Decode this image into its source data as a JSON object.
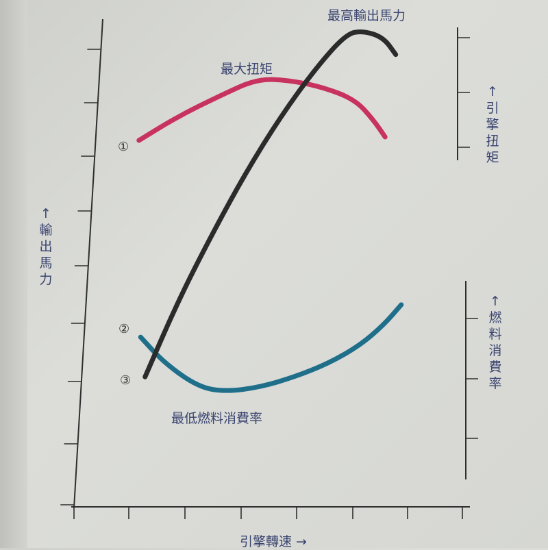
{
  "chart_data": {
    "type": "line",
    "title": "",
    "xlabel": "引擎轉速 →",
    "ylabel_left": "↑ 輸出馬力",
    "ylabel_right_top": "↑ 引擎扭矩",
    "ylabel_right_bottom": "↑ 燃料消費率",
    "grid": false,
    "xlim": [
      0,
      7
    ],
    "ylim": [
      0,
      8.5
    ],
    "series": [
      {
        "name": "最大扭矩",
        "marker": "①",
        "color": "#c8325e",
        "x": [
          1.2,
          1.9,
          2.64,
          3.31,
          3.87,
          4.48,
          5.07,
          5.4,
          5.61
        ],
        "y": [
          6.41,
          6.83,
          7.19,
          7.49,
          7.47,
          7.35,
          7.13,
          6.77,
          6.47
        ]
      },
      {
        "name": "最低燃料消費率",
        "marker": "②",
        "color": "#1f6f8b",
        "x": [
          1.23,
          1.66,
          2.27,
          2.76,
          3.37,
          3.99,
          4.6,
          5.15,
          5.58,
          5.9
        ],
        "y": [
          2.95,
          2.49,
          2.07,
          1.99,
          2.07,
          2.25,
          2.49,
          2.8,
          3.16,
          3.52
        ]
      },
      {
        "name": "最高輸出馬力",
        "marker": "③",
        "color": "#2b2b2b",
        "x": [
          1.31,
          1.9,
          2.52,
          3.13,
          3.74,
          4.36,
          4.91,
          5.21,
          5.58,
          5.8
        ],
        "y": [
          2.25,
          3.58,
          4.78,
          5.87,
          6.83,
          7.67,
          8.28,
          8.34,
          8.22,
          7.92
        ]
      }
    ]
  }
}
